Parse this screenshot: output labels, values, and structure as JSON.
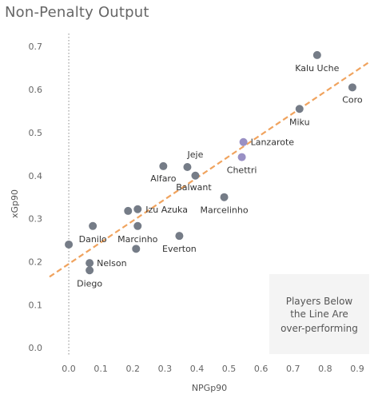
{
  "title": "Non-Penalty Output",
  "chart_data": {
    "type": "scatter",
    "xlabel": "NPGp90",
    "ylabel": "xGp90",
    "xlim": [
      -0.06,
      0.94
    ],
    "ylim": [
      -0.02,
      0.73
    ],
    "x_ticks": [
      0.0,
      0.1,
      0.2,
      0.3,
      0.4,
      0.5,
      0.6,
      0.7,
      0.8,
      0.9
    ],
    "x_tick_labels": [
      "0.0",
      "0.1",
      "0.2",
      "0.3",
      "0.4",
      "0.5",
      "0.6",
      "0.7",
      "0.8",
      "0.9"
    ],
    "y_ticks": [
      0.0,
      0.1,
      0.2,
      0.3,
      0.4,
      0.5,
      0.6,
      0.7
    ],
    "y_tick_labels": [
      "0.0",
      "0.1",
      "0.2",
      "0.3",
      "0.4",
      "0.5",
      "0.6",
      "0.7"
    ],
    "grid": false,
    "zero_reference_line": true,
    "trend_line": {
      "x": [
        -0.06,
        0.94
      ],
      "y": [
        0.165,
        0.665
      ],
      "color": "#f0a35e",
      "style": "dashed"
    },
    "colors": {
      "default": "#757c87",
      "highlight": "#9990c4"
    },
    "points": [
      {
        "x": 0.775,
        "y": 0.68,
        "label": "Kalu Uche",
        "highlight": false
      },
      {
        "x": 0.885,
        "y": 0.605,
        "label": "Coro",
        "highlight": false
      },
      {
        "x": 0.72,
        "y": 0.555,
        "label": "Miku",
        "highlight": false
      },
      {
        "x": 0.545,
        "y": 0.478,
        "label": "Lanzarote",
        "highlight": true
      },
      {
        "x": 0.54,
        "y": 0.443,
        "label": "Chettri",
        "highlight": true
      },
      {
        "x": 0.37,
        "y": 0.42,
        "label": "Jeje",
        "highlight": false
      },
      {
        "x": 0.295,
        "y": 0.422,
        "label": "Alfaro",
        "highlight": false
      },
      {
        "x": 0.395,
        "y": 0.4,
        "label": "Balwant",
        "highlight": false
      },
      {
        "x": 0.485,
        "y": 0.35,
        "label": "Marcelinho",
        "highlight": false
      },
      {
        "x": 0.215,
        "y": 0.322,
        "label": "Izu Azuka",
        "highlight": false
      },
      {
        "x": 0.185,
        "y": 0.318,
        "label": "",
        "highlight": false
      },
      {
        "x": 0.075,
        "y": 0.283,
        "label": "Danilo",
        "highlight": false
      },
      {
        "x": 0.215,
        "y": 0.283,
        "label": "Marcinho",
        "highlight": false
      },
      {
        "x": 0.345,
        "y": 0.26,
        "label": "Everton",
        "highlight": false
      },
      {
        "x": 0.0,
        "y": 0.24,
        "label": "",
        "highlight": false
      },
      {
        "x": 0.21,
        "y": 0.23,
        "label": "",
        "highlight": false
      },
      {
        "x": 0.065,
        "y": 0.197,
        "label": "Nelson",
        "highlight": false
      },
      {
        "x": 0.065,
        "y": 0.18,
        "label": "Diego",
        "highlight": false
      }
    ]
  },
  "note": {
    "lines": [
      "Players Below",
      "the Line Are",
      "over-performing"
    ]
  }
}
